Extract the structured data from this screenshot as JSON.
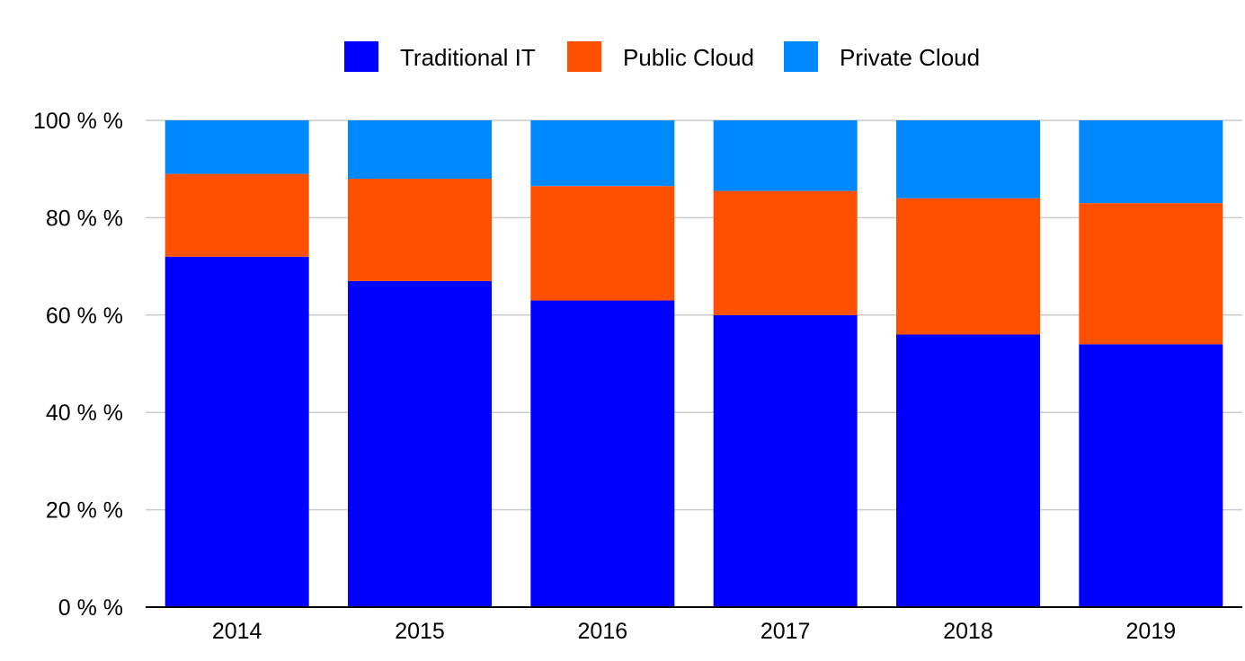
{
  "chart_data": {
    "type": "bar",
    "stacked": true,
    "percent_stacked": true,
    "categories": [
      "2014",
      "2015",
      "2016",
      "2017",
      "2018",
      "2019"
    ],
    "series": [
      {
        "name": "Traditional IT",
        "color": "#0000ff",
        "values": [
          72,
          67,
          63,
          60,
          56,
          54
        ]
      },
      {
        "name": "Public Cloud",
        "color": "#ff5000",
        "values": [
          17,
          21,
          23.5,
          25.5,
          28,
          29
        ]
      },
      {
        "name": "Private Cloud",
        "color": "#0088ff",
        "values": [
          11,
          12,
          13.5,
          14.5,
          16,
          17
        ]
      }
    ],
    "y_ticks": [
      "0 % %",
      "20 % %",
      "40 % %",
      "60 % %",
      "80 % %",
      "100 % %"
    ],
    "y_tick_values": [
      0,
      20,
      40,
      60,
      80,
      100
    ],
    "ylim": [
      0,
      100
    ],
    "grid": true,
    "legend_position": "top-center"
  }
}
